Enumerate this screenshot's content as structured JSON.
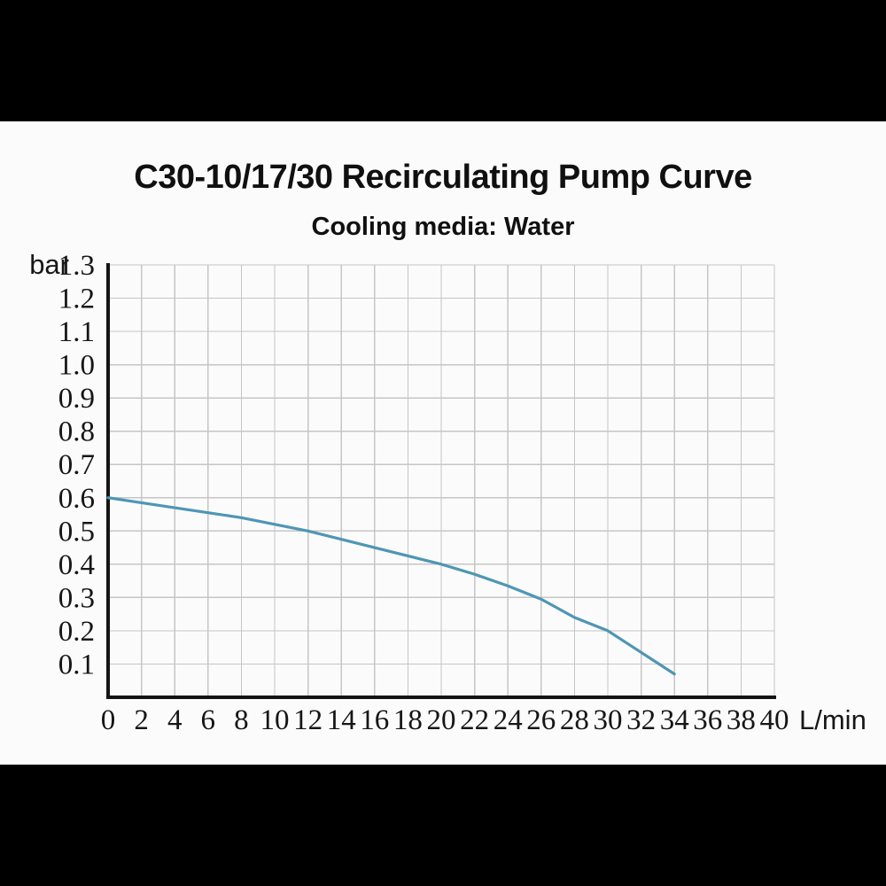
{
  "window": {
    "background": "#000000",
    "panel_background": "#fbfbfb"
  },
  "header": {
    "title": "C30-10/17/30 Recirculating Pump Curve",
    "subtitle": "Cooling media: Water"
  },
  "chart_data": {
    "type": "line",
    "title": "C30-10/17/30 Recirculating Pump Curve",
    "subtitle": "Cooling media: Water",
    "xlabel": "L/min",
    "ylabel": "bar",
    "xlim": [
      0,
      40
    ],
    "ylim": [
      0,
      1.3
    ],
    "x_ticks": [
      0,
      2,
      4,
      6,
      8,
      10,
      12,
      14,
      16,
      18,
      20,
      22,
      24,
      26,
      28,
      30,
      32,
      34,
      36,
      38,
      40
    ],
    "y_ticks": [
      0.1,
      0.2,
      0.3,
      0.4,
      0.5,
      0.6,
      0.7,
      0.8,
      0.9,
      1.0,
      1.1,
      1.2,
      1.3
    ],
    "grid": true,
    "legend_position": "none",
    "axis_color": "#141414",
    "grid_color": "#c6c6c6",
    "series": [
      {
        "name": "C30-10/17/30 pump curve",
        "color": "#4e96b4",
        "points": [
          [
            0,
            0.6
          ],
          [
            2,
            0.585
          ],
          [
            4,
            0.57
          ],
          [
            6,
            0.555
          ],
          [
            8,
            0.54
          ],
          [
            10,
            0.52
          ],
          [
            12,
            0.5
          ],
          [
            14,
            0.475
          ],
          [
            16,
            0.45
          ],
          [
            18,
            0.425
          ],
          [
            20,
            0.4
          ],
          [
            22,
            0.37
          ],
          [
            24,
            0.335
          ],
          [
            26,
            0.295
          ],
          [
            28,
            0.24
          ],
          [
            30,
            0.2
          ],
          [
            32,
            0.135
          ],
          [
            34,
            0.07
          ]
        ]
      }
    ]
  }
}
